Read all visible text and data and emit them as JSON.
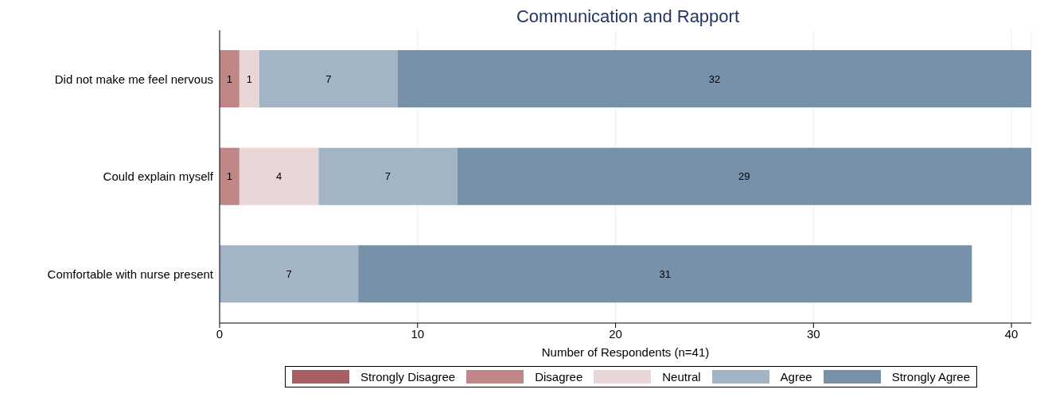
{
  "chart_data": {
    "type": "bar",
    "orientation": "horizontal",
    "stacked": true,
    "title": "Communication and Rapport",
    "xlabel": "Number of Respondents (n=41)",
    "categories": [
      "Did not make me feel nervous",
      "Could explain myself",
      "Comfortable with nurse present"
    ],
    "series": [
      {
        "name": "Strongly Disagree",
        "color": "#a85f63",
        "values": [
          null,
          null,
          null
        ]
      },
      {
        "name": "Disagree",
        "color": "#bf8788",
        "values": [
          1,
          1,
          null
        ]
      },
      {
        "name": "Neutral",
        "color": "#e9d6d6",
        "values": [
          1,
          4,
          null
        ]
      },
      {
        "name": "Agree",
        "color": "#a3b5c5",
        "values": [
          7,
          7,
          7
        ]
      },
      {
        "name": "Strongly Agree",
        "color": "#7891ab",
        "values": [
          32,
          29,
          31
        ]
      }
    ],
    "xlim": [
      0,
      41
    ],
    "xticks": [
      0,
      10,
      20,
      30,
      40
    ],
    "grid": "x",
    "legend": "bottom",
    "data_labels": true
  }
}
